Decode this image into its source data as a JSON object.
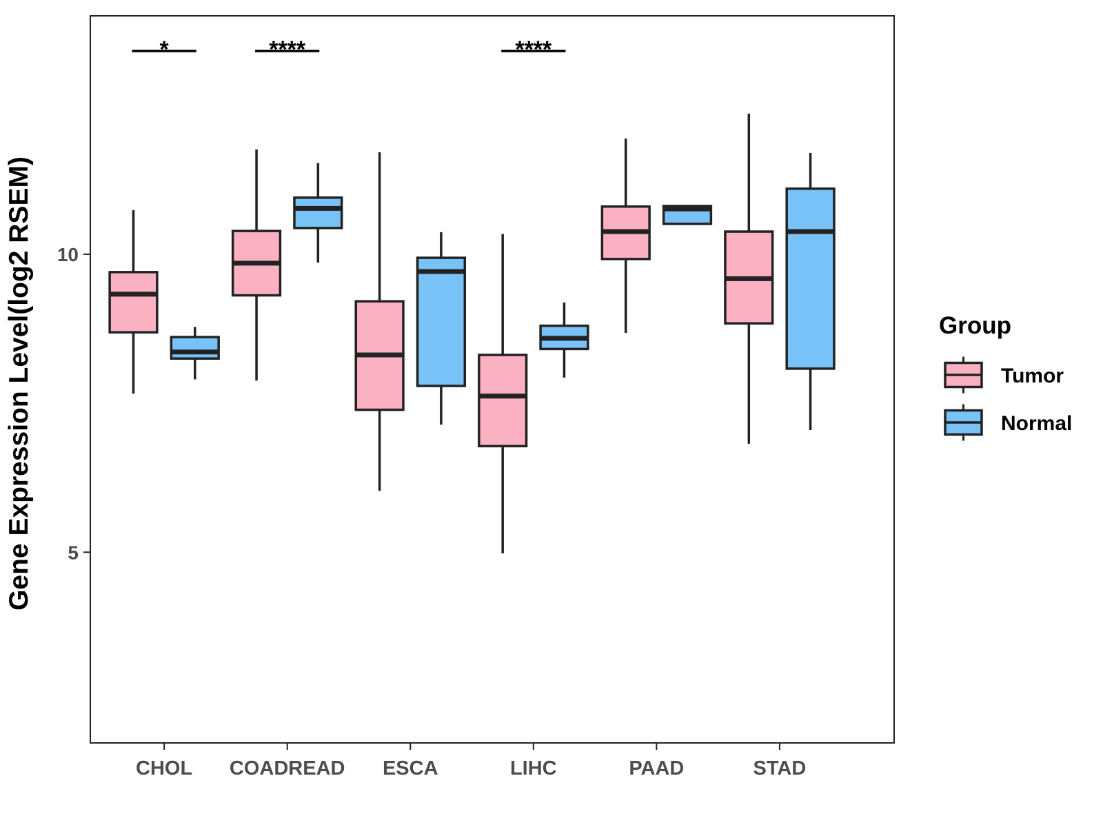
{
  "chart_data": {
    "type": "boxplot",
    "title": "",
    "xlabel": "",
    "ylabel": "Gene Expression Level(log2 RSEM)",
    "ylim": [
      1.8,
      14.0
    ],
    "y_ticks": [
      5,
      10
    ],
    "grid": false,
    "categories": [
      "CHOL",
      "COADREAD",
      "ESCA",
      "LIHC",
      "PAAD",
      "STAD"
    ],
    "legend": {
      "title": "Group",
      "position": "right",
      "items": [
        {
          "name": "Tumor",
          "color": "#fbb1c1"
        },
        {
          "name": "Normal",
          "color": "#79c2f7"
        }
      ]
    },
    "series": [
      {
        "name": "Tumor",
        "color": "#fbb1c1",
        "boxes": [
          {
            "category": "CHOL",
            "min": 7.66,
            "q1": 8.69,
            "median": 9.33,
            "q3": 9.7,
            "max": 10.74
          },
          {
            "category": "COADREAD",
            "min": 7.88,
            "q1": 9.31,
            "median": 9.85,
            "q3": 10.39,
            "max": 11.76
          },
          {
            "category": "ESCA",
            "min": 6.03,
            "q1": 7.39,
            "median": 8.31,
            "q3": 9.21,
            "max": 11.71
          },
          {
            "category": "LIHC",
            "min": 4.98,
            "q1": 6.78,
            "median": 7.62,
            "q3": 8.31,
            "max": 10.34
          },
          {
            "category": "PAAD",
            "min": 8.68,
            "q1": 9.92,
            "median": 10.38,
            "q3": 10.8,
            "max": 11.94
          },
          {
            "category": "STAD",
            "min": 6.82,
            "q1": 8.84,
            "median": 9.59,
            "q3": 10.38,
            "max": 12.36
          }
        ]
      },
      {
        "name": "Normal",
        "color": "#79c2f7",
        "boxes": [
          {
            "category": "CHOL",
            "min": 7.9,
            "q1": 8.25,
            "median": 8.36,
            "q3": 8.61,
            "max": 8.78
          },
          {
            "category": "COADREAD",
            "min": 9.86,
            "q1": 10.44,
            "median": 10.77,
            "q3": 10.95,
            "max": 11.53
          },
          {
            "category": "ESCA",
            "min": 7.14,
            "q1": 7.79,
            "median": 9.71,
            "q3": 9.94,
            "max": 10.37
          },
          {
            "category": "LIHC",
            "min": 7.93,
            "q1": 8.41,
            "median": 8.59,
            "q3": 8.8,
            "max": 9.19
          },
          {
            "category": "PAAD",
            "min": 10.5,
            "q1": 10.51,
            "median": 10.76,
            "q3": 10.81,
            "max": 10.82
          },
          {
            "category": "STAD",
            "min": 7.05,
            "q1": 8.08,
            "median": 10.38,
            "q3": 11.1,
            "max": 11.7
          }
        ]
      }
    ],
    "annotations": [
      {
        "category": "CHOL",
        "label": "*"
      },
      {
        "category": "COADREAD",
        "label": "****"
      },
      {
        "category": "LIHC",
        "label": "****"
      }
    ]
  }
}
